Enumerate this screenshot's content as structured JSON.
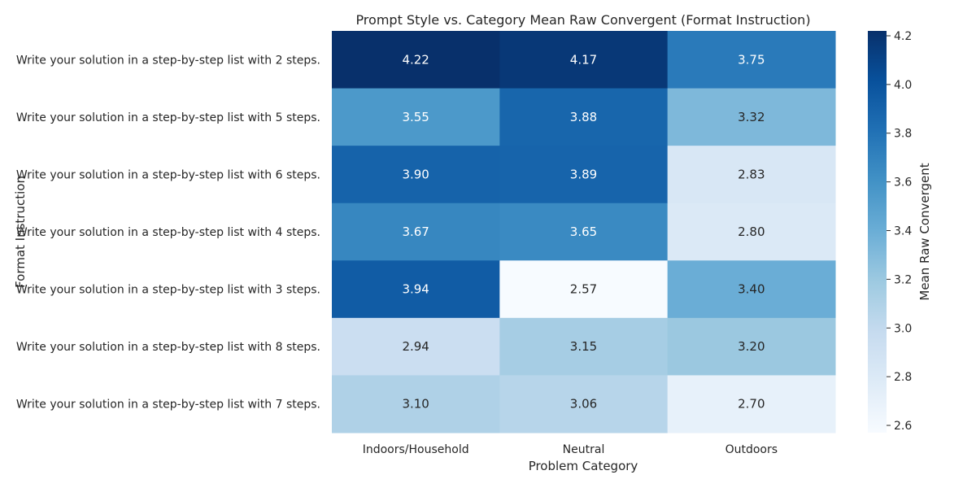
{
  "chart_data": {
    "type": "heatmap",
    "title": "Prompt Style vs. Category Mean Raw Convergent (Format Instruction)",
    "xlabel": "Problem Category",
    "ylabel": "Format Instruction",
    "colorbar_label": "Mean Raw Convergent",
    "colormap": "Blues",
    "x_categories": [
      "Indoors/Household",
      "Neutral",
      "Outdoors"
    ],
    "y_categories": [
      "Write your solution in a step-by-step list with 2 steps.",
      "Write your solution in a step-by-step list with 5 steps.",
      "Write your solution in a step-by-step list with 6 steps.",
      "Write your solution in a step-by-step list with 4 steps.",
      "Write your solution in a step-by-step list with 3 steps.",
      "Write your solution in a step-by-step list with 8 steps.",
      "Write your solution in a step-by-step list with 7 steps."
    ],
    "values": [
      [
        4.22,
        4.17,
        3.75
      ],
      [
        3.55,
        3.88,
        3.32
      ],
      [
        3.9,
        3.89,
        2.83
      ],
      [
        3.67,
        3.65,
        2.8
      ],
      [
        3.94,
        2.57,
        3.4
      ],
      [
        2.94,
        3.15,
        3.2
      ],
      [
        3.1,
        3.06,
        2.7
      ]
    ],
    "vmin": 2.57,
    "vmax": 4.22,
    "colorbar_ticks": [
      "2.6",
      "2.8",
      "3.0",
      "3.2",
      "3.4",
      "3.6",
      "3.8",
      "4.0",
      "4.2"
    ],
    "grid": false
  }
}
